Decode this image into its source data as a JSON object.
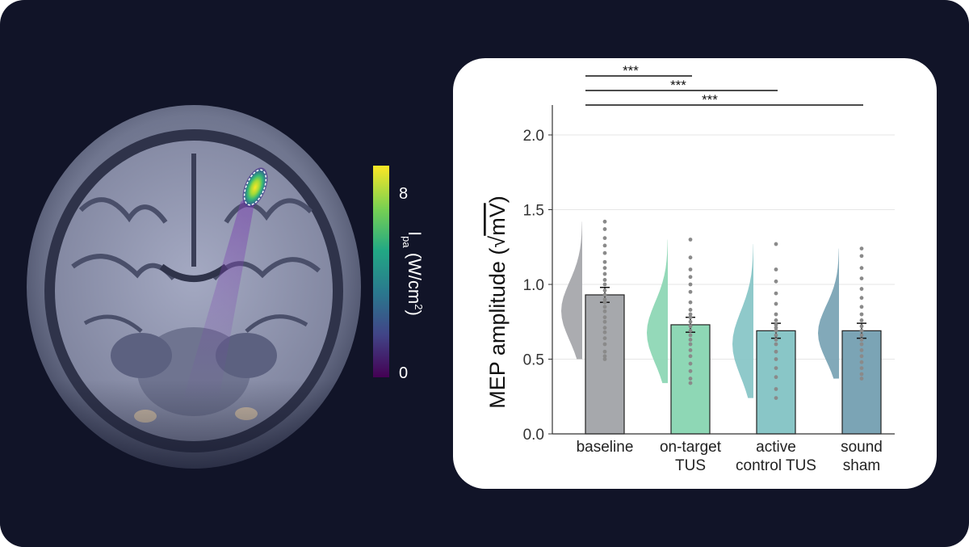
{
  "figure": {
    "colorbar": {
      "label_main": "I",
      "label_sub": "pa",
      "label_unit_prefix": " (W/cm",
      "label_unit_sup": "2",
      "label_unit_suffix": ")",
      "tick_max": "8",
      "tick_min": "0",
      "colors": [
        "#fde725",
        "#35b779",
        "#21918c",
        "#31688e",
        "#443983",
        "#440154"
      ]
    }
  },
  "chart_data": {
    "type": "bar",
    "ylabel_prefix": "MEP amplitude (",
    "ylabel_root": "√",
    "ylabel_unit": "mV",
    "ylabel_suffix": ")",
    "ylim": [
      0,
      2.2
    ],
    "yticks": [
      "0.0",
      "0.5",
      "1.0",
      "1.5",
      "2.0"
    ],
    "ytick_values": [
      0,
      0.5,
      1.0,
      1.5,
      2.0
    ],
    "grid": true,
    "categories": [
      {
        "line1": "baseline",
        "line2": ""
      },
      {
        "line1": "on-target",
        "line2": "TUS"
      },
      {
        "line1": "active",
        "line2": "control TUS"
      },
      {
        "line1": "sound",
        "line2": "sham"
      }
    ],
    "values": [
      0.93,
      0.73,
      0.69,
      0.69
    ],
    "errors": [
      0.05,
      0.05,
      0.05,
      0.05
    ],
    "colors": [
      "#a6a8ac",
      "#8ed7b5",
      "#89c6c7",
      "#7ba4b5"
    ],
    "violin_colors": [
      "#a6a8ac",
      "#8ed7b5",
      "#89c6c7",
      "#7ba4b5"
    ],
    "violin_range": [
      [
        0.5,
        1.42
      ],
      [
        0.34,
        1.3
      ],
      [
        0.24,
        1.27
      ],
      [
        0.37,
        1.24
      ]
    ],
    "points": [
      [
        0.5,
        0.52,
        0.55,
        0.6,
        0.64,
        0.68,
        0.71,
        0.75,
        0.78,
        0.82,
        0.85,
        0.88,
        0.9,
        0.93,
        0.96,
        1.0,
        1.03,
        1.07,
        1.11,
        1.15,
        1.21,
        1.26,
        1.31,
        1.37,
        1.42
      ],
      [
        0.34,
        0.37,
        0.42,
        0.47,
        0.52,
        0.56,
        0.6,
        0.63,
        0.66,
        0.69,
        0.72,
        0.75,
        0.78,
        0.8,
        0.83,
        0.88,
        0.95,
        1.0,
        1.05,
        1.1,
        1.18,
        1.3
      ],
      [
        0.24,
        0.3,
        0.38,
        0.44,
        0.5,
        0.55,
        0.6,
        0.63,
        0.66,
        0.69,
        0.71,
        0.73,
        0.76,
        0.8,
        0.87,
        0.94,
        1.02,
        1.1,
        1.27
      ],
      [
        0.37,
        0.4,
        0.44,
        0.48,
        0.52,
        0.56,
        0.6,
        0.63,
        0.66,
        0.69,
        0.72,
        0.76,
        0.8,
        0.85,
        0.91,
        0.97,
        1.04,
        1.11,
        1.19,
        1.24
      ]
    ],
    "significance": [
      {
        "from": 0,
        "to": 1,
        "label": "***"
      },
      {
        "from": 0,
        "to": 2,
        "label": "***"
      },
      {
        "from": 0,
        "to": 3,
        "label": "***"
      }
    ]
  }
}
